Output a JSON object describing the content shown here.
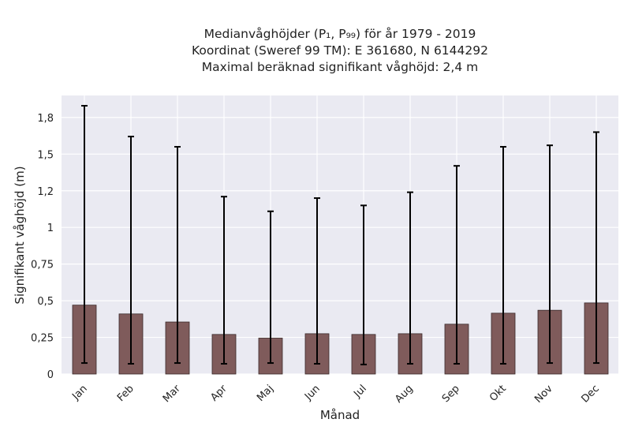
{
  "chart_data": {
    "type": "bar",
    "title_lines": [
      "Medianvåghöjder (P₁, P₉₉) för år 1979 - 2019",
      "Koordinat (Sweref 99 TM): E 361680, N 6144292",
      "Maximal beräknad signifikant våghöjd: 2,4 m"
    ],
    "xlabel": "Månad",
    "ylabel": "Signifikant våghöjd (m)",
    "ylim": [
      0,
      1.9
    ],
    "yticks": [
      0,
      0.25,
      0.5,
      0.75,
      1,
      1.25,
      1.5,
      1.75
    ],
    "ytick_labels": [
      "0",
      "0,25",
      "0,5",
      "0,75",
      "1",
      "1,2",
      "1,5",
      "1,8"
    ],
    "categories": [
      "Jan",
      "Feb",
      "Mar",
      "Apr",
      "Maj",
      "Jun",
      "Jul",
      "Aug",
      "Sep",
      "Okt",
      "Nov",
      "Dec"
    ],
    "values": [
      0.47,
      0.41,
      0.355,
      0.27,
      0.245,
      0.275,
      0.27,
      0.275,
      0.34,
      0.415,
      0.435,
      0.485
    ],
    "p1": [
      0.075,
      0.07,
      0.075,
      0.07,
      0.075,
      0.07,
      0.065,
      0.07,
      0.07,
      0.07,
      0.075,
      0.075
    ],
    "p99": [
      1.83,
      1.62,
      1.55,
      1.21,
      1.11,
      1.2,
      1.15,
      1.24,
      1.42,
      1.55,
      1.56,
      1.65
    ],
    "grid": true,
    "colors": {
      "bar": "#7f5b5b",
      "bar_edge": "#3a2a2a",
      "error": "#000000",
      "plot_bg": "#eaeaf2",
      "grid": "#ffffff"
    }
  }
}
